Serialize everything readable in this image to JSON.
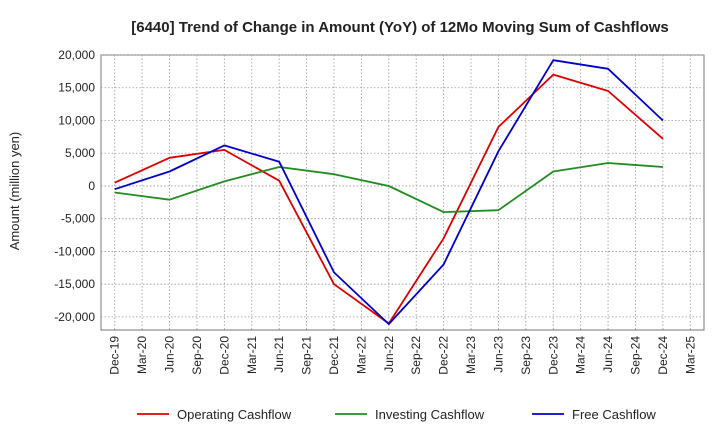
{
  "chart_data": {
    "type": "line",
    "title": "[6440]  Trend of Change in Amount (YoY) of 12Mo Moving Sum of Cashflows",
    "xlabel": "",
    "ylabel": "Amount (million yen)",
    "ylim": [
      -22000,
      20000
    ],
    "yticks": [
      20000,
      15000,
      10000,
      5000,
      0,
      -5000,
      -10000,
      -15000,
      -20000
    ],
    "ytick_labels": [
      "20,000",
      "15,000",
      "10,000",
      "5,000",
      "0",
      "-5,000",
      "-10,000",
      "-15,000",
      "-20,000"
    ],
    "categories": [
      "Dec-19",
      "Mar-20",
      "Jun-20",
      "Sep-20",
      "Dec-20",
      "Mar-21",
      "Jun-21",
      "Sep-21",
      "Dec-21",
      "Mar-22",
      "Jun-22",
      "Sep-22",
      "Dec-22",
      "Mar-23",
      "Jun-23",
      "Sep-23",
      "Dec-23",
      "Mar-24",
      "Jun-24",
      "Sep-24",
      "Dec-24",
      "Mar-25"
    ],
    "grid": true,
    "legend_position": "bottom",
    "series": [
      {
        "name": "Operating Cashflow",
        "color": "#e00000",
        "values": [
          500,
          null,
          4300,
          null,
          5500,
          null,
          800,
          null,
          -15000,
          null,
          -21000,
          null,
          -8000,
          null,
          9000,
          null,
          17000,
          null,
          14500,
          null,
          7200,
          null
        ]
      },
      {
        "name": "Investing Cashflow",
        "color": "#228b22",
        "values": [
          -1000,
          null,
          -2100,
          null,
          700,
          null,
          2900,
          null,
          1800,
          null,
          0,
          null,
          -4000,
          null,
          -3700,
          null,
          2200,
          null,
          3500,
          null,
          2900,
          null
        ]
      },
      {
        "name": "Free Cashflow",
        "color": "#0000cc",
        "values": [
          -500,
          null,
          2200,
          null,
          6200,
          null,
          3700,
          null,
          -13200,
          null,
          -21100,
          null,
          -12000,
          null,
          5300,
          null,
          19200,
          null,
          17900,
          null,
          10000,
          null
        ]
      }
    ]
  }
}
